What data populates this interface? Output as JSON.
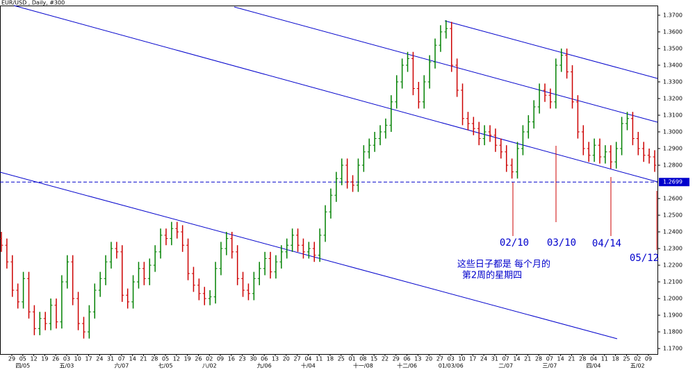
{
  "chart_data": {
    "type": "ohlc",
    "title": "EUR/USD , Daily, #300",
    "ylim": [
      1.1667,
      1.3758
    ],
    "yticks": [
      {
        "value": 1.17,
        "label": "1.1700"
      },
      {
        "value": 1.18,
        "label": "1.1800"
      },
      {
        "value": 1.19,
        "label": "1.1900"
      },
      {
        "value": 1.2,
        "label": "1.2000"
      },
      {
        "value": 1.21,
        "label": "1.2100"
      },
      {
        "value": 1.22,
        "label": "1.2200"
      },
      {
        "value": 1.23,
        "label": "1.2300"
      },
      {
        "value": 1.24,
        "label": "1.2400"
      },
      {
        "value": 1.25,
        "label": "1.2500"
      },
      {
        "value": 1.26,
        "label": "1.2600"
      },
      {
        "value": 1.28,
        "label": "1.2800"
      },
      {
        "value": 1.29,
        "label": "1.2900"
      },
      {
        "value": 1.3,
        "label": "1.3000"
      },
      {
        "value": 1.31,
        "label": "1.3100"
      },
      {
        "value": 1.32,
        "label": "1.3200"
      },
      {
        "value": 1.33,
        "label": "1.3300"
      },
      {
        "value": 1.34,
        "label": "1.3400"
      },
      {
        "value": 1.35,
        "label": "1.3500"
      },
      {
        "value": 1.36,
        "label": "1.3600"
      },
      {
        "value": 1.37,
        "label": "1.3700"
      }
    ],
    "reference_line": 1.2699,
    "up_color": "#008000",
    "down_color": "#cc0000",
    "line_color": "#0000cc",
    "weeks": [
      "29",
      "05",
      "12",
      "19",
      "26",
      "03",
      "10",
      "17",
      "24",
      "31",
      "07",
      "14",
      "21",
      "28",
      "05",
      "12",
      "19",
      "26",
      "02",
      "09",
      "16",
      "23",
      "30",
      "06",
      "13",
      "20",
      "27",
      "04",
      "11",
      "18",
      "25",
      "01",
      "08",
      "15",
      "22",
      "29",
      "06",
      "13",
      "20",
      "27",
      "03",
      "10",
      "17",
      "24",
      "31",
      "07",
      "14",
      "21",
      "28",
      "07",
      "14",
      "21",
      "28",
      "04",
      "11",
      "18",
      "25",
      "02",
      "09"
    ],
    "months": [
      null,
      "四/05",
      null,
      null,
      null,
      "五/03",
      null,
      null,
      null,
      null,
      "六/07",
      null,
      null,
      null,
      "七/05",
      null,
      null,
      null,
      "八/02",
      null,
      null,
      null,
      null,
      "九/06",
      null,
      null,
      null,
      "十/04",
      null,
      null,
      null,
      null,
      "十一/08",
      null,
      null,
      null,
      "十二/06",
      null,
      null,
      null,
      "01/03/06",
      null,
      null,
      null,
      null,
      "二/07",
      null,
      null,
      null,
      "三/07",
      null,
      null,
      null,
      "四/04",
      null,
      null,
      null,
      "五/02",
      null
    ],
    "ohlc": [
      [
        1.236,
        1.24,
        1.228,
        1.232
      ],
      [
        1.232,
        1.236,
        1.218,
        1.222
      ],
      [
        1.222,
        1.226,
        1.201,
        1.205
      ],
      [
        1.205,
        1.209,
        1.194,
        1.198
      ],
      [
        1.198,
        1.216,
        1.194,
        1.212
      ],
      [
        1.212,
        1.216,
        1.188,
        1.192
      ],
      [
        1.192,
        1.196,
        1.178,
        1.182
      ],
      [
        1.182,
        1.192,
        1.178,
        1.188
      ],
      [
        1.188,
        1.192,
        1.181,
        1.185
      ],
      [
        1.185,
        1.2,
        1.181,
        1.196
      ],
      [
        1.196,
        1.2,
        1.182,
        1.186
      ],
      [
        1.186,
        1.214,
        1.182,
        1.21
      ],
      [
        1.21,
        1.226,
        1.206,
        1.222
      ],
      [
        1.222,
        1.226,
        1.196,
        1.2
      ],
      [
        1.2,
        1.204,
        1.181,
        1.185
      ],
      [
        1.185,
        1.189,
        1.176,
        1.18
      ],
      [
        1.18,
        1.196,
        1.176,
        1.192
      ],
      [
        1.192,
        1.209,
        1.188,
        1.205
      ],
      [
        1.205,
        1.216,
        1.201,
        1.212
      ],
      [
        1.212,
        1.226,
        1.208,
        1.222
      ],
      [
        1.222,
        1.234,
        1.218,
        1.23
      ],
      [
        1.23,
        1.234,
        1.224,
        1.228
      ],
      [
        1.228,
        1.232,
        1.198,
        1.202
      ],
      [
        1.202,
        1.206,
        1.194,
        1.198
      ],
      [
        1.198,
        1.214,
        1.194,
        1.21
      ],
      [
        1.21,
        1.222,
        1.206,
        1.218
      ],
      [
        1.218,
        1.222,
        1.208,
        1.212
      ],
      [
        1.212,
        1.224,
        1.208,
        1.22
      ],
      [
        1.22,
        1.232,
        1.216,
        1.228
      ],
      [
        1.228,
        1.242,
        1.224,
        1.238
      ],
      [
        1.238,
        1.242,
        1.232,
        1.236
      ],
      [
        1.236,
        1.246,
        1.232,
        1.242
      ],
      [
        1.242,
        1.246,
        1.236,
        1.24
      ],
      [
        1.24,
        1.244,
        1.228,
        1.232
      ],
      [
        1.232,
        1.236,
        1.211,
        1.215
      ],
      [
        1.215,
        1.219,
        1.204,
        1.208
      ],
      [
        1.208,
        1.212,
        1.199,
        1.203
      ],
      [
        1.203,
        1.207,
        1.196,
        1.2
      ],
      [
        1.2,
        1.205,
        1.196,
        1.201
      ],
      [
        1.201,
        1.222,
        1.197,
        1.218
      ],
      [
        1.218,
        1.234,
        1.214,
        1.23
      ],
      [
        1.23,
        1.24,
        1.226,
        1.236
      ],
      [
        1.236,
        1.24,
        1.224,
        1.228
      ],
      [
        1.228,
        1.232,
        1.208,
        1.212
      ],
      [
        1.212,
        1.216,
        1.201,
        1.205
      ],
      [
        1.205,
        1.209,
        1.199,
        1.203
      ],
      [
        1.203,
        1.216,
        1.199,
        1.212
      ],
      [
        1.212,
        1.222,
        1.208,
        1.218
      ],
      [
        1.218,
        1.228,
        1.214,
        1.224
      ],
      [
        1.224,
        1.228,
        1.212,
        1.216
      ],
      [
        1.216,
        1.226,
        1.212,
        1.222
      ],
      [
        1.222,
        1.232,
        1.218,
        1.228
      ],
      [
        1.228,
        1.236,
        1.224,
        1.232
      ],
      [
        1.232,
        1.242,
        1.228,
        1.238
      ],
      [
        1.238,
        1.242,
        1.228,
        1.232
      ],
      [
        1.232,
        1.236,
        1.224,
        1.228
      ],
      [
        1.228,
        1.234,
        1.224,
        1.23
      ],
      [
        1.23,
        1.234,
        1.222,
        1.226
      ],
      [
        1.226,
        1.242,
        1.222,
        1.238
      ],
      [
        1.238,
        1.256,
        1.234,
        1.252
      ],
      [
        1.252,
        1.266,
        1.248,
        1.262
      ],
      [
        1.262,
        1.276,
        1.258,
        1.272
      ],
      [
        1.272,
        1.284,
        1.268,
        1.28
      ],
      [
        1.28,
        1.284,
        1.266,
        1.27
      ],
      [
        1.27,
        1.274,
        1.264,
        1.268
      ],
      [
        1.268,
        1.284,
        1.264,
        1.28
      ],
      [
        1.28,
        1.292,
        1.276,
        1.288
      ],
      [
        1.288,
        1.296,
        1.284,
        1.292
      ],
      [
        1.292,
        1.3,
        1.288,
        1.296
      ],
      [
        1.296,
        1.304,
        1.292,
        1.3
      ],
      [
        1.3,
        1.308,
        1.296,
        1.304
      ],
      [
        1.304,
        1.322,
        1.3,
        1.318
      ],
      [
        1.318,
        1.334,
        1.314,
        1.33
      ],
      [
        1.33,
        1.344,
        1.326,
        1.34
      ],
      [
        1.34,
        1.348,
        1.336,
        1.344
      ],
      [
        1.344,
        1.348,
        1.322,
        1.326
      ],
      [
        1.326,
        1.33,
        1.314,
        1.318
      ],
      [
        1.318,
        1.334,
        1.314,
        1.33
      ],
      [
        1.33,
        1.346,
        1.326,
        1.342
      ],
      [
        1.342,
        1.356,
        1.338,
        1.352
      ],
      [
        1.352,
        1.364,
        1.348,
        1.36
      ],
      [
        1.36,
        1.367,
        1.356,
        1.362
      ],
      [
        1.362,
        1.366,
        1.336,
        1.34
      ],
      [
        1.34,
        1.344,
        1.321,
        1.325
      ],
      [
        1.325,
        1.329,
        1.304,
        1.308
      ],
      [
        1.308,
        1.312,
        1.301,
        1.305
      ],
      [
        1.305,
        1.309,
        1.298,
        1.302
      ],
      [
        1.302,
        1.306,
        1.292,
        1.296
      ],
      [
        1.296,
        1.304,
        1.292,
        1.3
      ],
      [
        1.3,
        1.304,
        1.294,
        1.298
      ],
      [
        1.298,
        1.302,
        1.288,
        1.292
      ],
      [
        1.292,
        1.296,
        1.284,
        1.288
      ],
      [
        1.288,
        1.292,
        1.276,
        1.28
      ],
      [
        1.28,
        1.284,
        1.272,
        1.276
      ],
      [
        1.276,
        1.294,
        1.272,
        1.29
      ],
      [
        1.29,
        1.304,
        1.286,
        1.3
      ],
      [
        1.3,
        1.31,
        1.296,
        1.306
      ],
      [
        1.306,
        1.319,
        1.302,
        1.315
      ],
      [
        1.315,
        1.329,
        1.311,
        1.325
      ],
      [
        1.325,
        1.329,
        1.318,
        1.322
      ],
      [
        1.322,
        1.326,
        1.314,
        1.318
      ],
      [
        1.318,
        1.344,
        1.314,
        1.34
      ],
      [
        1.34,
        1.35,
        1.336,
        1.346
      ],
      [
        1.346,
        1.35,
        1.332,
        1.336
      ],
      [
        1.336,
        1.34,
        1.314,
        1.318
      ],
      [
        1.318,
        1.322,
        1.296,
        1.3
      ],
      [
        1.3,
        1.304,
        1.286,
        1.29
      ],
      [
        1.29,
        1.294,
        1.282,
        1.286
      ],
      [
        1.286,
        1.296,
        1.282,
        1.292
      ],
      [
        1.292,
        1.296,
        1.281,
        1.285
      ],
      [
        1.285,
        1.292,
        1.281,
        1.288
      ],
      [
        1.288,
        1.292,
        1.278,
        1.282
      ],
      [
        1.282,
        1.294,
        1.278,
        1.29
      ],
      [
        1.29,
        1.309,
        1.286,
        1.305
      ],
      [
        1.305,
        1.312,
        1.301,
        1.308
      ],
      [
        1.308,
        1.312,
        1.292,
        1.296
      ],
      [
        1.296,
        1.3,
        1.286,
        1.29
      ],
      [
        1.29,
        1.294,
        1.282,
        1.286
      ],
      [
        1.286,
        1.29,
        1.281,
        1.285
      ],
      [
        1.285,
        1.289,
        1.276,
        1.28
      ]
    ],
    "annotations": [
      "02/10",
      "03/10",
      "04/14",
      "05/12",
      "这些日子都是 每个月的",
      "第2周的星期四"
    ]
  }
}
